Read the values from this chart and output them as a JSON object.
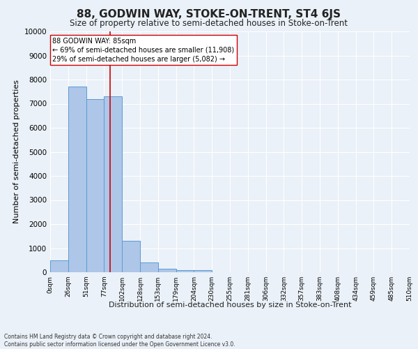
{
  "title": "88, GODWIN WAY, STOKE-ON-TRENT, ST4 6JS",
  "subtitle": "Size of property relative to semi-detached houses in Stoke-on-Trent",
  "xlabel": "Distribution of semi-detached houses by size in Stoke-on-Trent",
  "ylabel": "Number of semi-detached properties",
  "footnote": "Contains HM Land Registry data © Crown copyright and database right 2024.\nContains public sector information licensed under the Open Government Licence v3.0.",
  "bar_left_edges": [
    0,
    25.5,
    51,
    76.5,
    102,
    127.5,
    153,
    178.5,
    204,
    229.5,
    255,
    280.5,
    306,
    331.5,
    357,
    382.5,
    408,
    433.5,
    459,
    484.5
  ],
  "bar_heights": [
    500,
    7700,
    7200,
    7300,
    1300,
    400,
    150,
    100,
    100,
    0,
    0,
    0,
    0,
    0,
    0,
    0,
    0,
    0,
    0,
    0
  ],
  "bar_width": 25.5,
  "bar_color": "#aec6e8",
  "bar_edge_color": "#5b9bd5",
  "property_size": 85,
  "red_line_color": "#cc0000",
  "annotation_text": "88 GODWIN WAY: 85sqm\n← 69% of semi-detached houses are smaller (11,908)\n29% of semi-detached houses are larger (5,082) →",
  "annotation_box_color": "#ffffff",
  "annotation_border_color": "#cc0000",
  "ylim": [
    0,
    10000
  ],
  "yticks": [
    0,
    1000,
    2000,
    3000,
    4000,
    5000,
    6000,
    7000,
    8000,
    9000,
    10000
  ],
  "xtick_labels": [
    "0sqm",
    "26sqm",
    "51sqm",
    "77sqm",
    "102sqm",
    "128sqm",
    "153sqm",
    "179sqm",
    "204sqm",
    "230sqm",
    "255sqm",
    "281sqm",
    "306sqm",
    "332sqm",
    "357sqm",
    "383sqm",
    "408sqm",
    "434sqm",
    "459sqm",
    "485sqm",
    "510sqm"
  ],
  "xtick_positions": [
    0,
    25.5,
    51,
    76.5,
    102,
    127.5,
    153,
    178.5,
    204,
    229.5,
    255,
    280.5,
    306,
    331.5,
    357,
    382.5,
    408,
    433.5,
    459,
    484.5,
    510
  ],
  "bg_color": "#eaf1f8",
  "plot_bg_color": "#eaf1f8",
  "grid_color": "#ffffff",
  "title_fontsize": 11,
  "subtitle_fontsize": 8.5,
  "axis_label_fontsize": 8,
  "annotation_fontsize": 7,
  "ytick_fontsize": 7.5,
  "xtick_fontsize": 6.5
}
